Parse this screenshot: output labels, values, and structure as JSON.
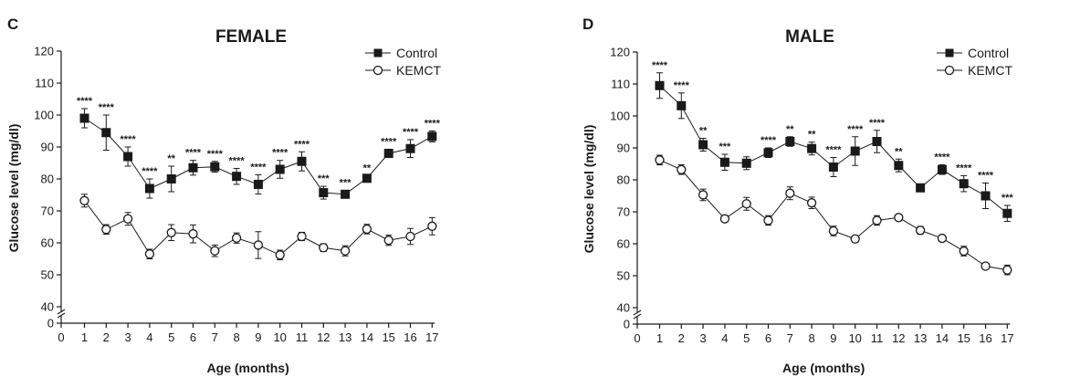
{
  "chart_data": [
    {
      "panel": "C",
      "type": "line",
      "title": "FEMALE",
      "xlabel": "Age (months)",
      "ylabel": "Glucose level (mg/dl)",
      "xlim": [
        0,
        17
      ],
      "ylim": [
        40,
        120
      ],
      "y_axis_break": "0 to 40",
      "yticks": [
        0,
        40,
        50,
        60,
        70,
        80,
        90,
        100,
        110,
        120
      ],
      "xticks": [
        0,
        1,
        2,
        3,
        4,
        5,
        6,
        7,
        8,
        9,
        10,
        11,
        12,
        13,
        14,
        15,
        16,
        17
      ],
      "legend": "top-right",
      "grid": false,
      "x": [
        1,
        2,
        3,
        4,
        5,
        6,
        7,
        8,
        9,
        10,
        11,
        12,
        13,
        14,
        15,
        16,
        17
      ],
      "series": [
        {
          "name": "Control",
          "marker": "filled-square",
          "values": [
            99,
            94.5,
            87,
            77,
            80,
            83.5,
            83.8,
            80.8,
            78.3,
            83,
            85.5,
            75.7,
            75.2,
            80.2,
            88,
            89.5,
            93.3
          ],
          "error": [
            3,
            5.5,
            3,
            3,
            4,
            2.3,
            1.7,
            2.5,
            3,
            2.8,
            3,
            2,
            1.2,
            0.8,
            1.3,
            2.8,
            1.7
          ],
          "significance": [
            "****",
            "****",
            "****",
            "****",
            "**",
            "****",
            "****",
            "****",
            "****",
            "****",
            "****",
            "***",
            "***",
            "**",
            "****",
            "****",
            "****"
          ]
        },
        {
          "name": "KEMCT",
          "marker": "open-circle",
          "values": [
            73.2,
            64.2,
            67.5,
            56.5,
            63.2,
            62.8,
            57.5,
            61.5,
            59.3,
            56.2,
            62,
            58.5,
            57.5,
            64.3,
            60.8,
            62,
            65.2
          ],
          "error": [
            2,
            1.5,
            2,
            1.5,
            2.5,
            2.8,
            1.8,
            1.6,
            4.2,
            1.5,
            1.3,
            1.2,
            1.6,
            1.5,
            1.6,
            2.5,
            2.7
          ]
        }
      ]
    },
    {
      "panel": "D",
      "type": "line",
      "title": "MALE",
      "xlabel": "Age (months)",
      "ylabel": "Glucose level (mg/dl)",
      "xlim": [
        0,
        17
      ],
      "ylim": [
        40,
        120
      ],
      "y_axis_break": "0 to 40",
      "yticks": [
        0,
        40,
        50,
        60,
        70,
        80,
        90,
        100,
        110,
        120
      ],
      "xticks": [
        0,
        1,
        2,
        3,
        4,
        5,
        6,
        7,
        8,
        9,
        10,
        11,
        12,
        13,
        14,
        15,
        16,
        17
      ],
      "legend": "top-right",
      "grid": false,
      "x": [
        1,
        2,
        3,
        4,
        5,
        6,
        7,
        8,
        9,
        10,
        11,
        12,
        13,
        14,
        15,
        16,
        17
      ],
      "series": [
        {
          "name": "Control",
          "marker": "filled-square",
          "values": [
            109.5,
            103.2,
            91,
            85.5,
            85.2,
            88.5,
            92,
            89.8,
            84,
            89,
            92,
            84.5,
            77.5,
            83.2,
            78.8,
            75,
            69.5
          ],
          "error": [
            4,
            4,
            2,
            2.5,
            2,
            1.5,
            1.5,
            2,
            3,
            4.5,
            3.5,
            2,
            1,
            1.5,
            2.5,
            4,
            2.5
          ],
          "significance": [
            "****",
            "****",
            "**",
            "***",
            "",
            "****",
            "**",
            "**",
            "****",
            "****",
            "****",
            "**",
            "",
            "****",
            "****",
            "****",
            "***"
          ]
        },
        {
          "name": "KEMCT",
          "marker": "open-circle",
          "values": [
            86.2,
            83.2,
            75.3,
            67.8,
            72.5,
            67.3,
            75.8,
            72.8,
            64,
            61.5,
            67.3,
            68.2,
            64.2,
            61.7,
            57.7,
            53,
            51.8
          ],
          "error": [
            1.5,
            1.5,
            1.8,
            0.8,
            2,
            1.5,
            2,
            1.8,
            1.5,
            1,
            1.5,
            1,
            1.2,
            0.8,
            1.5,
            0.8,
            1.5
          ]
        }
      ]
    }
  ]
}
